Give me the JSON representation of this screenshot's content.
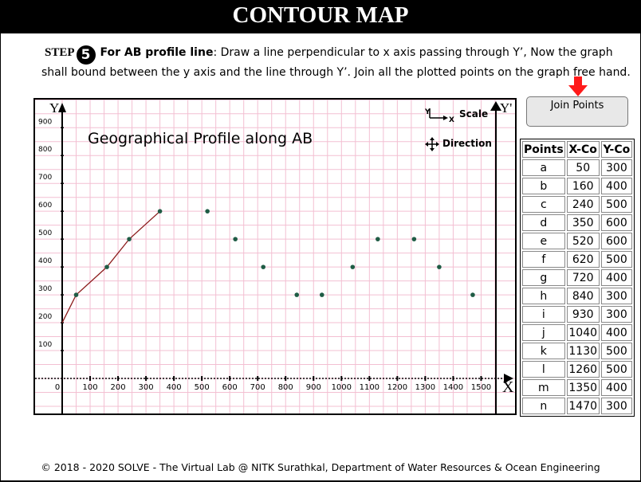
{
  "title": "CONTOUR MAP",
  "instruction": {
    "step_word": "STEP",
    "step_number": "5",
    "heading": "For AB profile line",
    "text": ": Draw a line perpendicular to x axis passing through Y’, Now the graph shall bound between the y axis and the line through Y’. Join all the plotted points on the graph free hand."
  },
  "graph": {
    "title": "Geographical Profile along AB",
    "scale_label": "Scale",
    "direction_label": "Direction",
    "y_axis_label": "Y",
    "y_prime_label": "Y'",
    "x_axis_label": "X",
    "axis_glyph_y": "Y",
    "axis_glyph_x": "X"
  },
  "chart_data": {
    "type": "scatter",
    "title": "Geographical Profile along AB",
    "xlim": [
      0,
      1500
    ],
    "ylim": [
      0,
      900
    ],
    "x_ticks": [
      0,
      100,
      200,
      300,
      400,
      500,
      600,
      700,
      800,
      900,
      1000,
      1100,
      1200,
      1300,
      1400,
      1500
    ],
    "y_ticks": [
      100,
      200,
      300,
      400,
      500,
      600,
      700,
      800,
      900
    ],
    "points": [
      {
        "x": 50,
        "y": 300
      },
      {
        "x": 160,
        "y": 400
      },
      {
        "x": 240,
        "y": 500
      },
      {
        "x": 350,
        "y": 600
      },
      {
        "x": 520,
        "y": 600
      },
      {
        "x": 620,
        "y": 500
      },
      {
        "x": 720,
        "y": 400
      },
      {
        "x": 840,
        "y": 300
      },
      {
        "x": 930,
        "y": 300
      },
      {
        "x": 1040,
        "y": 400
      },
      {
        "x": 1130,
        "y": 500
      },
      {
        "x": 1260,
        "y": 500
      },
      {
        "x": 1350,
        "y": 400
      },
      {
        "x": 1470,
        "y": 300
      }
    ],
    "joined_line": [
      {
        "x": 0,
        "y": 200
      },
      {
        "x": 50,
        "y": 300
      },
      {
        "x": 160,
        "y": 400
      },
      {
        "x": 240,
        "y": 500
      },
      {
        "x": 350,
        "y": 600
      }
    ],
    "point_color": "#1f5c45",
    "line_color": "#8b1a1a",
    "grid": true,
    "grid_color": "#f3bfd2"
  },
  "join_button": {
    "label": "Join Points"
  },
  "table": {
    "headers": [
      "Points",
      "X-Co",
      "Y-Co"
    ],
    "rows": [
      [
        "a",
        "50",
        "300"
      ],
      [
        "b",
        "160",
        "400"
      ],
      [
        "c",
        "240",
        "500"
      ],
      [
        "d",
        "350",
        "600"
      ],
      [
        "e",
        "520",
        "600"
      ],
      [
        "f",
        "620",
        "500"
      ],
      [
        "g",
        "720",
        "400"
      ],
      [
        "h",
        "840",
        "300"
      ],
      [
        "i",
        "930",
        "300"
      ],
      [
        "j",
        "1040",
        "400"
      ],
      [
        "k",
        "1130",
        "500"
      ],
      [
        "l",
        "1260",
        "500"
      ],
      [
        "m",
        "1350",
        "400"
      ],
      [
        "n",
        "1470",
        "300"
      ]
    ]
  },
  "footer": "© 2018 - 2020 SOLVE - The Virtual Lab @ NITK Surathkal, Department of Water Resources & Ocean Engineering"
}
